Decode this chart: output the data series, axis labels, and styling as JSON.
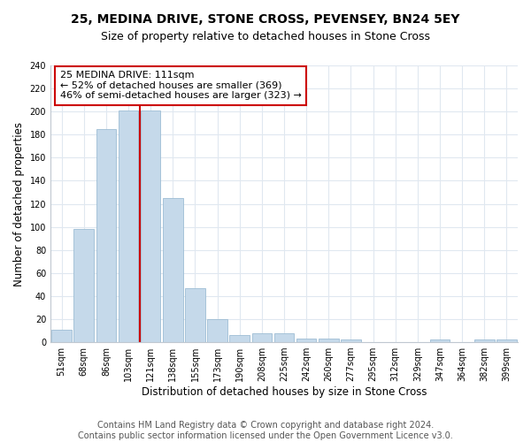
{
  "title": "25, MEDINA DRIVE, STONE CROSS, PEVENSEY, BN24 5EY",
  "subtitle": "Size of property relative to detached houses in Stone Cross",
  "xlabel": "Distribution of detached houses by size in Stone Cross",
  "ylabel": "Number of detached properties",
  "categories": [
    "51sqm",
    "68sqm",
    "86sqm",
    "103sqm",
    "121sqm",
    "138sqm",
    "155sqm",
    "173sqm",
    "190sqm",
    "208sqm",
    "225sqm",
    "242sqm",
    "260sqm",
    "277sqm",
    "295sqm",
    "312sqm",
    "329sqm",
    "347sqm",
    "364sqm",
    "382sqm",
    "399sqm"
  ],
  "values": [
    11,
    98,
    185,
    201,
    201,
    125,
    47,
    20,
    6,
    8,
    8,
    3,
    3,
    2,
    0,
    0,
    0,
    2,
    0,
    2,
    2
  ],
  "bar_color": "#c5d9ea",
  "bar_edge_color": "#9dbdd4",
  "vline_x_idx": 3.5,
  "vline_color": "#cc0000",
  "annotation_text": "25 MEDINA DRIVE: 111sqm\n← 52% of detached houses are smaller (369)\n46% of semi-detached houses are larger (323) →",
  "annotation_box_facecolor": "#ffffff",
  "annotation_box_edgecolor": "#cc0000",
  "ylim": [
    0,
    240
  ],
  "yticks": [
    0,
    20,
    40,
    60,
    80,
    100,
    120,
    140,
    160,
    180,
    200,
    220,
    240
  ],
  "footer_line1": "Contains HM Land Registry data © Crown copyright and database right 2024.",
  "footer_line2": "Contains public sector information licensed under the Open Government Licence v3.0.",
  "bg_color": "#ffffff",
  "title_fontsize": 10,
  "subtitle_fontsize": 9,
  "xlabel_fontsize": 8.5,
  "ylabel_fontsize": 8.5,
  "footer_fontsize": 7,
  "tick_fontsize": 7,
  "annotation_fontsize": 8
}
